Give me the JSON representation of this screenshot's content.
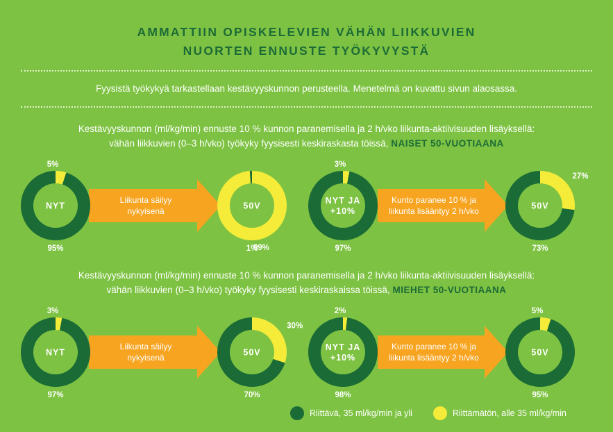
{
  "title_line1": "AMMATTIIN OPISKELEVIEN VÄHÄN LIIKKUVIEN",
  "title_line2": "NUORTEN ENNUSTE TYÖKYVYSTÄ",
  "intro": "Fyysistä työkykyä tarkastellaan kestävyyskunnon perusteella. Menetelmä on kuvattu sivun alaosassa.",
  "colors": {
    "sufficient": "#1a6b36",
    "insufficient": "#f5ec3a",
    "arrow": "#f7a421",
    "center": "#7dc242"
  },
  "legend": {
    "sufficient": "Riittävä, 35 ml/kg/min ja yli",
    "insufficient": "Riittämätön, alle 35 ml/kg/min"
  },
  "chart_data": [
    {
      "type": "pie",
      "group": "NAISET 50-VUOTIAANA",
      "desc_line1": "Kestävyyskunnon (ml/kg/min) ennuste 10 % kunnon paranemisella ja 2 h/vko liikunta-aktiivisuuden lisäyksellä:",
      "desc_line2": "vähän liikkuvien (0–3 h/vko) työkyky fyysisesti keskiraskasta töissä,",
      "scenarios": [
        {
          "start_label": "NYT",
          "start": {
            "sufficient": 95,
            "insufficient": 5
          },
          "arrow": [
            "Liikunta säilyy",
            "nykyisenä"
          ],
          "end_label": "50V",
          "end": {
            "sufficient": 1,
            "insufficient": 99
          }
        },
        {
          "start_label": [
            "NYT JA",
            "+10%"
          ],
          "start": {
            "sufficient": 97,
            "insufficient": 3
          },
          "arrow": [
            "Kunto paranee 10 % ja",
            "liikunta lisääntyy 2 h/vko"
          ],
          "end_label": "50V",
          "end": {
            "sufficient": 73,
            "insufficient": 27
          }
        }
      ]
    },
    {
      "type": "pie",
      "group": "MIEHET 50-VUOTIAANA",
      "desc_line1": "Kestävyyskunnon (ml/kg/min) ennuste 10 % kunnon paranemisella ja 2 h/vko liikunta-aktiivisuuden lisäyksellä:",
      "desc_line2": "vähän liikkuvien (0–3 h/vko) työkyky fyysisesti keskiraskaissa töissä,",
      "scenarios": [
        {
          "start_label": "NYT",
          "start": {
            "sufficient": 97,
            "insufficient": 3
          },
          "arrow": [
            "Liikunta säilyy",
            "nykyisenä"
          ],
          "end_label": "50V",
          "end": {
            "sufficient": 70,
            "insufficient": 30
          }
        },
        {
          "start_label": [
            "NYT JA",
            "+10%"
          ],
          "start": {
            "sufficient": 98,
            "insufficient": 2
          },
          "arrow": [
            "Kunto paranee 10 % ja",
            "liikunta lisääntyy 2 h/vko"
          ],
          "end_label": "50V",
          "end": {
            "sufficient": 95,
            "insufficient": 5
          }
        }
      ]
    }
  ]
}
